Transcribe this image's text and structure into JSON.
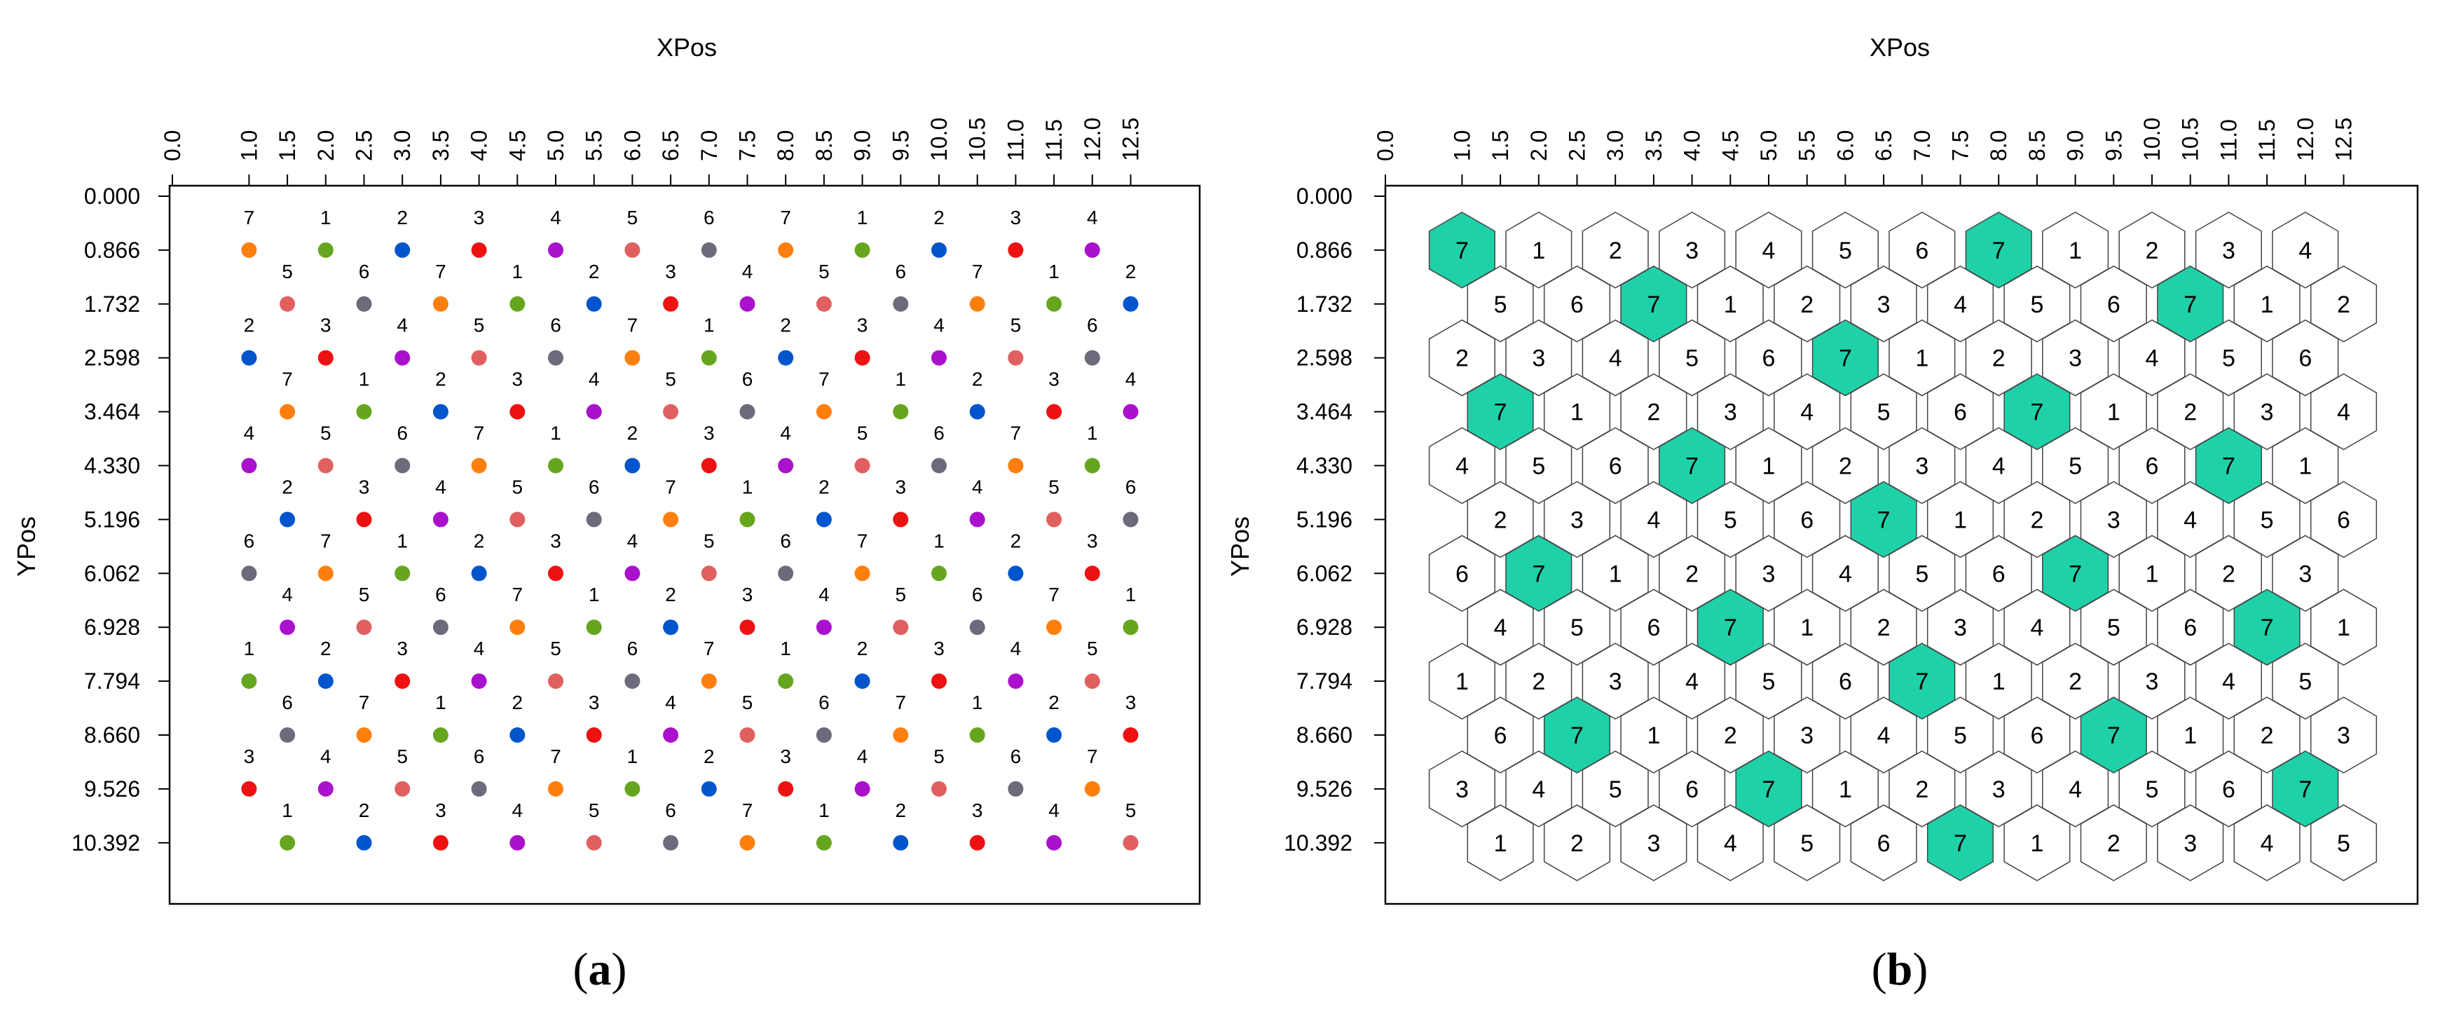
{
  "chart_data": [
    {
      "type": "scatter",
      "panel_label": "(a)",
      "xlabel": "XPos",
      "ylabel": "YPos",
      "x_ticks": [
        "0.0",
        "1.0",
        "1.5",
        "2.0",
        "2.5",
        "3.0",
        "3.5",
        "4.0",
        "4.5",
        "5.0",
        "5.5",
        "6.0",
        "6.5",
        "7.0",
        "7.5",
        "8.0",
        "8.5",
        "9.0",
        "9.5",
        "10.0",
        "10.5",
        "11.0",
        "11.5",
        "12.0",
        "12.5"
      ],
      "y_ticks": [
        "0.000",
        "0.866",
        "1.732",
        "2.598",
        "3.464",
        "4.330",
        "5.196",
        "6.062",
        "6.928",
        "7.794",
        "8.660",
        "9.526",
        "10.392"
      ],
      "grid": false,
      "legend": "none",
      "colors": {
        "1": "#66a61e",
        "2": "#0055cc",
        "3": "#ee1111",
        "4": "#aa11cc",
        "5": "#e06060",
        "6": "#6b6b7b",
        "7": "#ff7f0e"
      },
      "rows": [
        {
          "y": 0.866,
          "x_start": 1.0,
          "labels": [
            7,
            1,
            2,
            3,
            4,
            5,
            6,
            7,
            1,
            2,
            3,
            4
          ]
        },
        {
          "y": 1.732,
          "x_start": 1.5,
          "labels": [
            5,
            6,
            7,
            1,
            2,
            3,
            4,
            5,
            6,
            7,
            1,
            2
          ]
        },
        {
          "y": 2.598,
          "x_start": 1.0,
          "labels": [
            2,
            3,
            4,
            5,
            6,
            7,
            1,
            2,
            3,
            4,
            5,
            6
          ]
        },
        {
          "y": 3.464,
          "x_start": 1.5,
          "labels": [
            7,
            1,
            2,
            3,
            4,
            5,
            6,
            7,
            1,
            2,
            3,
            4
          ]
        },
        {
          "y": 4.33,
          "x_start": 1.0,
          "labels": [
            4,
            5,
            6,
            7,
            1,
            2,
            3,
            4,
            5,
            6,
            7,
            1
          ]
        },
        {
          "y": 5.196,
          "x_start": 1.5,
          "labels": [
            2,
            3,
            4,
            5,
            6,
            7,
            1,
            2,
            3,
            4,
            5,
            6
          ]
        },
        {
          "y": 6.062,
          "x_start": 1.0,
          "labels": [
            6,
            7,
            1,
            2,
            3,
            4,
            5,
            6,
            7,
            1,
            2,
            3
          ]
        },
        {
          "y": 6.928,
          "x_start": 1.5,
          "labels": [
            4,
            5,
            6,
            7,
            1,
            2,
            3,
            4,
            5,
            6,
            7,
            1
          ]
        },
        {
          "y": 7.794,
          "x_start": 1.0,
          "labels": [
            1,
            2,
            3,
            4,
            5,
            6,
            7,
            1,
            2,
            3,
            4,
            5
          ]
        },
        {
          "y": 8.66,
          "x_start": 1.5,
          "labels": [
            6,
            7,
            1,
            2,
            3,
            4,
            5,
            6,
            7,
            1,
            2,
            3
          ]
        },
        {
          "y": 9.526,
          "x_start": 1.0,
          "labels": [
            3,
            4,
            5,
            6,
            7,
            1,
            2,
            3,
            4,
            5,
            6,
            7
          ]
        },
        {
          "y": 10.392,
          "x_start": 1.5,
          "labels": [
            1,
            2,
            3,
            4,
            5,
            6,
            7,
            1,
            2,
            3,
            4,
            5
          ]
        }
      ]
    },
    {
      "type": "hexagonal grid",
      "panel_label": "(b)",
      "xlabel": "XPos",
      "ylabel": "YPos",
      "x_ticks": [
        "0.0",
        "1.0",
        "1.5",
        "2.0",
        "2.5",
        "3.0",
        "3.5",
        "4.0",
        "4.5",
        "5.0",
        "5.5",
        "6.0",
        "6.5",
        "7.0",
        "7.5",
        "8.0",
        "8.5",
        "9.0",
        "9.5",
        "10.0",
        "10.5",
        "11.0",
        "11.5",
        "12.0",
        "12.5"
      ],
      "y_ticks": [
        "0.000",
        "0.866",
        "1.732",
        "2.598",
        "3.464",
        "4.330",
        "5.196",
        "6.062",
        "6.928",
        "7.794",
        "8.660",
        "9.526",
        "10.392"
      ],
      "grid": false,
      "legend": "none",
      "highlight_label": 7,
      "highlight_color": "#1fd1a8",
      "cell_color": "#ffffff",
      "rows": [
        {
          "y": 0.866,
          "x_start": 1.0,
          "labels": [
            7,
            1,
            2,
            3,
            4,
            5,
            6,
            7,
            1,
            2,
            3,
            4
          ]
        },
        {
          "y": 1.732,
          "x_start": 1.5,
          "labels": [
            5,
            6,
            7,
            1,
            2,
            3,
            4,
            5,
            6,
            7,
            1,
            2
          ]
        },
        {
          "y": 2.598,
          "x_start": 1.0,
          "labels": [
            2,
            3,
            4,
            5,
            6,
            7,
            1,
            2,
            3,
            4,
            5,
            6
          ]
        },
        {
          "y": 3.464,
          "x_start": 1.5,
          "labels": [
            7,
            1,
            2,
            3,
            4,
            5,
            6,
            7,
            1,
            2,
            3,
            4
          ]
        },
        {
          "y": 4.33,
          "x_start": 1.0,
          "labels": [
            4,
            5,
            6,
            7,
            1,
            2,
            3,
            4,
            5,
            6,
            7,
            1
          ]
        },
        {
          "y": 5.196,
          "x_start": 1.5,
          "labels": [
            2,
            3,
            4,
            5,
            6,
            7,
            1,
            2,
            3,
            4,
            5,
            6
          ]
        },
        {
          "y": 6.062,
          "x_start": 1.0,
          "labels": [
            6,
            7,
            1,
            2,
            3,
            4,
            5,
            6,
            7,
            1,
            2,
            3
          ]
        },
        {
          "y": 6.928,
          "x_start": 1.5,
          "labels": [
            4,
            5,
            6,
            7,
            1,
            2,
            3,
            4,
            5,
            6,
            7,
            1
          ]
        },
        {
          "y": 7.794,
          "x_start": 1.0,
          "labels": [
            1,
            2,
            3,
            4,
            5,
            6,
            7,
            1,
            2,
            3,
            4,
            5
          ]
        },
        {
          "y": 8.66,
          "x_start": 1.5,
          "labels": [
            6,
            7,
            1,
            2,
            3,
            4,
            5,
            6,
            7,
            1,
            2,
            3
          ]
        },
        {
          "y": 9.526,
          "x_start": 1.0,
          "labels": [
            3,
            4,
            5,
            6,
            7,
            1,
            2,
            3,
            4,
            5,
            6,
            7
          ]
        },
        {
          "y": 10.392,
          "x_start": 1.5,
          "labels": [
            1,
            2,
            3,
            4,
            5,
            6,
            7,
            1,
            2,
            3,
            4,
            5
          ]
        }
      ]
    }
  ]
}
